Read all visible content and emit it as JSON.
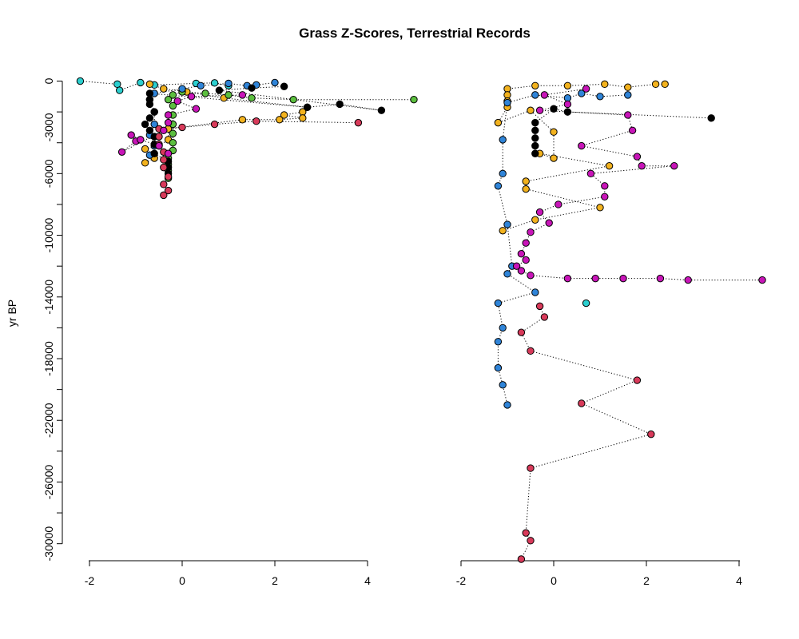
{
  "chart_data": {
    "type": "scatter",
    "title": "Grass Z-Scores, Terrestrial Records",
    "ylabel": "yr BP",
    "ylim": [
      0,
      -31000
    ],
    "yticks": [
      0,
      -2000,
      -4000,
      -6000,
      -8000,
      -10000,
      -12000,
      -14000,
      -16000,
      -18000,
      -20000,
      -22000,
      -24000,
      -26000,
      -28000,
      -30000
    ],
    "ytick_labels": [
      "0",
      "-3000",
      "-6000",
      "-10000",
      "-14000",
      "-18000",
      "-22000",
      "-26000",
      "-30000"
    ],
    "ytick_label_values": [
      0,
      -3000,
      -6000,
      -10000,
      -14000,
      -18000,
      -22000,
      -26000,
      -30000
    ],
    "panels": [
      {
        "name": "left",
        "xlim": [
          -2.2,
          5.0
        ],
        "xticks": [
          -2,
          0,
          2,
          4
        ],
        "xtick_labels": [
          "-2",
          "0",
          "2",
          "4"
        ],
        "series": [
          {
            "color": "#2bcfcf",
            "points": [
              [
                -2.2,
                0
              ],
              [
                -1.4,
                -200
              ],
              [
                -1.35,
                -600
              ],
              [
                -0.9,
                -100
              ],
              [
                -0.6,
                -250
              ],
              [
                0.3,
                -150
              ],
              [
                0.7,
                -120
              ],
              [
                1.0,
                -300
              ]
            ]
          },
          {
            "color": "#f2b21e",
            "points": [
              [
                -0.7,
                -200
              ],
              [
                -0.4,
                -500
              ],
              [
                0.1,
                -700
              ],
              [
                0.9,
                -1100
              ],
              [
                2.7,
                -1700
              ],
              [
                2.6,
                -2000
              ],
              [
                2.2,
                -2200
              ],
              [
                2.6,
                -2400
              ],
              [
                2.1,
                -2500
              ],
              [
                1.3,
                -2500
              ],
              [
                -0.3,
                -3100
              ],
              [
                -0.3,
                -3800
              ],
              [
                -0.5,
                -4200
              ],
              [
                -0.8,
                -4400
              ],
              [
                -0.6,
                -5000
              ],
              [
                -0.8,
                -5300
              ]
            ]
          },
          {
            "color": "#5cbf3f",
            "points": [
              [
                5.0,
                -1200
              ],
              [
                2.4,
                -1200
              ],
              [
                1.5,
                -1100
              ],
              [
                1.0,
                -900
              ],
              [
                0.5,
                -800
              ],
              [
                0.0,
                -700
              ],
              [
                -0.2,
                -900
              ],
              [
                -0.3,
                -1200
              ],
              [
                -0.2,
                -1600
              ],
              [
                -0.2,
                -2200
              ],
              [
                -0.2,
                -2800
              ],
              [
                -0.2,
                -3400
              ],
              [
                -0.2,
                -4000
              ],
              [
                -0.2,
                -4500
              ],
              [
                -0.3,
                -5000
              ],
              [
                -0.3,
                -5400
              ],
              [
                -0.3,
                -5800
              ],
              [
                -0.3,
                -6300
              ]
            ]
          },
          {
            "color": "#2f84d8",
            "points": [
              [
                2.0,
                -100
              ],
              [
                1.6,
                -250
              ],
              [
                1.4,
                -300
              ],
              [
                1.0,
                -150
              ],
              [
                0.4,
                -300
              ],
              [
                0.0,
                -500
              ],
              [
                -0.6,
                -800
              ],
              [
                -0.7,
                -1200
              ],
              [
                -0.6,
                -2000
              ],
              [
                -0.6,
                -2800
              ],
              [
                -0.7,
                -3500
              ],
              [
                -0.6,
                -4200
              ],
              [
                -0.7,
                -4800
              ]
            ]
          },
          {
            "color": "#000000",
            "points": [
              [
                2.2,
                -350
              ],
              [
                1.5,
                -450
              ],
              [
                0.8,
                -600
              ],
              [
                4.3,
                -1900
              ],
              [
                3.4,
                -1500
              ],
              [
                2.7,
                -1700
              ],
              [
                -0.7,
                -800
              ],
              [
                -0.7,
                -1200
              ],
              [
                -0.7,
                -1500
              ],
              [
                -0.6,
                -2000
              ],
              [
                -0.7,
                -2400
              ],
              [
                -0.8,
                -2800
              ],
              [
                -0.7,
                -3200
              ],
              [
                -0.6,
                -3600
              ],
              [
                -0.6,
                -4100
              ],
              [
                -0.6,
                -4700
              ],
              [
                -0.3,
                -5200
              ],
              [
                -0.3,
                -5600
              ],
              [
                -0.3,
                -6000
              ]
            ]
          },
          {
            "color": "#d83a5a",
            "points": [
              [
                3.8,
                -2700
              ],
              [
                1.6,
                -2600
              ],
              [
                0.7,
                -2800
              ],
              [
                0.0,
                -3000
              ],
              [
                -0.5,
                -3100
              ],
              [
                -0.5,
                -3600
              ],
              [
                -0.5,
                -4100
              ],
              [
                -0.4,
                -4600
              ],
              [
                -0.4,
                -5100
              ],
              [
                -0.4,
                -5600
              ],
              [
                -0.3,
                -6200
              ],
              [
                -0.4,
                -6700
              ],
              [
                -0.3,
                -7100
              ],
              [
                -0.4,
                -7400
              ]
            ]
          },
          {
            "color": "#c815b8",
            "points": [
              [
                1.3,
                -900
              ],
              [
                0.2,
                -1000
              ],
              [
                -0.1,
                -1300
              ],
              [
                0.3,
                -1800
              ],
              [
                -0.3,
                -2200
              ],
              [
                -0.3,
                -2700
              ],
              [
                -0.4,
                -3200
              ],
              [
                -1.3,
                -4600
              ],
              [
                -1.0,
                -3900
              ],
              [
                -1.1,
                -3500
              ],
              [
                -0.9,
                -3800
              ],
              [
                -0.5,
                -4200
              ],
              [
                -0.3,
                -4700
              ]
            ]
          }
        ]
      },
      {
        "name": "right",
        "xlim": [
          -1.3,
          4.5
        ],
        "xticks": [
          -2,
          0,
          2,
          4
        ],
        "xtick_labels": [
          "-2",
          "0",
          "2",
          "4"
        ],
        "series": [
          {
            "color": "#f2b21e",
            "points": [
              [
                2.4,
                -200
              ],
              [
                2.2,
                -200
              ],
              [
                1.6,
                -400
              ],
              [
                1.1,
                -200
              ],
              [
                0.3,
                -300
              ],
              [
                -0.4,
                -300
              ],
              [
                -1.0,
                -500
              ],
              [
                -1.0,
                -900
              ],
              [
                -1.0,
                -1300
              ],
              [
                -1.0,
                -1700
              ],
              [
                -1.2,
                -2700
              ],
              [
                -0.5,
                -1900
              ],
              [
                0.0,
                -3300
              ],
              [
                0.0,
                -5000
              ],
              [
                -0.3,
                -4700
              ],
              [
                1.2,
                -5500
              ],
              [
                -0.6,
                -6500
              ],
              [
                -0.6,
                -7000
              ],
              [
                1.0,
                -8200
              ],
              [
                -0.4,
                -9000
              ],
              [
                -1.1,
                -9700
              ]
            ]
          },
          {
            "color": "#2f84d8",
            "points": [
              [
                1.6,
                -900
              ],
              [
                1.0,
                -1000
              ],
              [
                0.6,
                -800
              ],
              [
                0.3,
                -1100
              ],
              [
                -0.4,
                -900
              ],
              [
                -1.0,
                -1400
              ],
              [
                -1.1,
                -3800
              ],
              [
                -1.1,
                -6000
              ],
              [
                -1.2,
                -6800
              ],
              [
                -1.0,
                -9300
              ],
              [
                -0.9,
                -12000
              ],
              [
                -1.0,
                -12500
              ],
              [
                -0.4,
                -13700
              ],
              [
                -1.2,
                -14400
              ],
              [
                -1.1,
                -16000
              ],
              [
                -1.2,
                -16900
              ],
              [
                -1.2,
                -18600
              ],
              [
                -1.1,
                -19700
              ],
              [
                -1.0,
                -21000
              ]
            ]
          },
          {
            "color": "#000000",
            "points": [
              [
                3.4,
                -2400
              ],
              [
                0.3,
                -2000
              ],
              [
                0.0,
                -1800
              ],
              [
                -0.4,
                -2700
              ],
              [
                -0.4,
                -3200
              ],
              [
                -0.4,
                -3700
              ],
              [
                -0.4,
                -4200
              ],
              [
                -0.4,
                -4700
              ]
            ]
          },
          {
            "color": "#2bcfcf",
            "points": [
              [
                0.7,
                -14400
              ]
            ]
          },
          {
            "color": "#c815b8",
            "points": [
              [
                0.7,
                -500
              ],
              [
                -0.2,
                -900
              ],
              [
                0.3,
                -1500
              ],
              [
                -0.3,
                -1900
              ],
              [
                1.6,
                -2200
              ],
              [
                1.7,
                -3200
              ],
              [
                0.6,
                -4200
              ],
              [
                1.8,
                -4900
              ],
              [
                1.9,
                -5500
              ],
              [
                2.6,
                -5500
              ],
              [
                0.8,
                -6000
              ],
              [
                1.1,
                -6800
              ],
              [
                1.1,
                -7500
              ],
              [
                0.1,
                -8000
              ],
              [
                -0.3,
                -8500
              ],
              [
                -0.1,
                -9200
              ],
              [
                -0.5,
                -9800
              ],
              [
                -0.6,
                -10500
              ],
              [
                -0.7,
                -11200
              ],
              [
                -0.6,
                -11600
              ],
              [
                -0.8,
                -12000
              ],
              [
                -0.7,
                -12300
              ],
              [
                -0.5,
                -12600
              ],
              [
                0.3,
                -12800
              ],
              [
                0.9,
                -12800
              ],
              [
                1.5,
                -12800
              ],
              [
                2.3,
                -12800
              ],
              [
                2.9,
                -12900
              ],
              [
                4.5,
                -12900
              ]
            ]
          },
          {
            "color": "#d83a5a",
            "points": [
              [
                -0.3,
                -14600
              ],
              [
                -0.2,
                -15300
              ],
              [
                -0.7,
                -16300
              ],
              [
                -0.5,
                -17500
              ],
              [
                1.8,
                -19400
              ],
              [
                0.6,
                -20900
              ],
              [
                2.1,
                -22900
              ],
              [
                -0.5,
                -25100
              ],
              [
                -0.6,
                -29300
              ],
              [
                -0.5,
                -29800
              ],
              [
                -0.7,
                -31000
              ]
            ]
          }
        ]
      }
    ]
  }
}
